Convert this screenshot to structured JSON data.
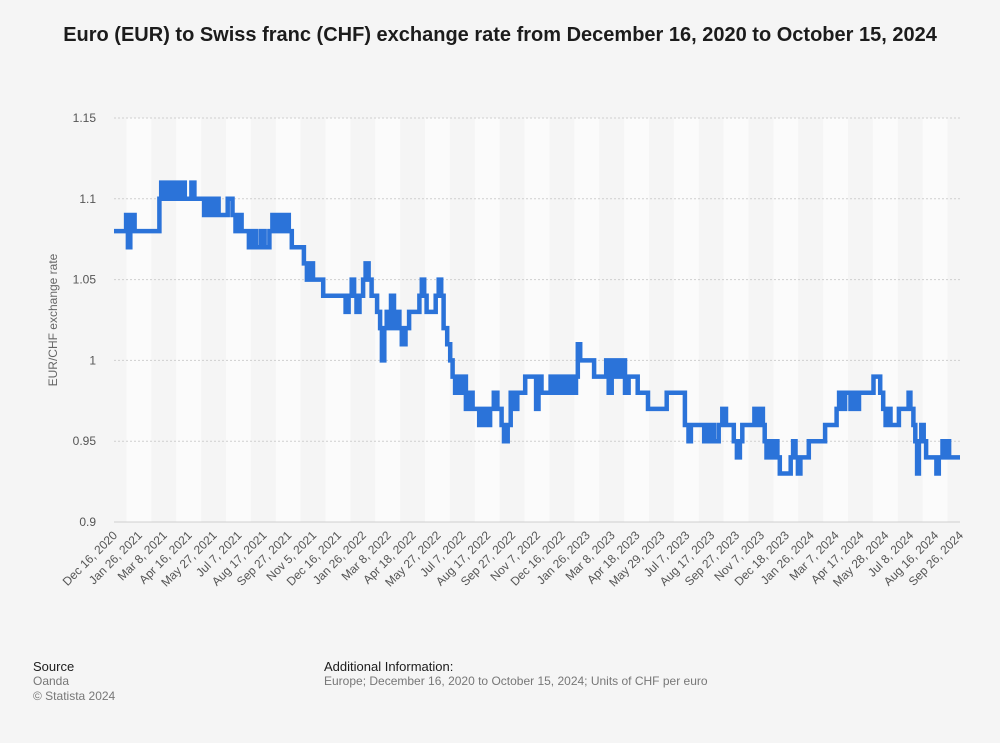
{
  "chart_data": {
    "type": "line",
    "title": "Euro (EUR) to Swiss franc (CHF) exchange rate from December 16, 2020 to October 15, 2024",
    "ylabel": "EUR/CHF exchange rate",
    "xlabel": "",
    "ylim": [
      0.9,
      1.15
    ],
    "yticks": [
      "0.9",
      "0.95",
      "1",
      "1.05",
      "1.1",
      "1.15"
    ],
    "grid": true,
    "x_tick_labels": [
      "Dec 16, 2020",
      "Jan 26, 2021",
      "Mar 8, 2021",
      "Apr 16, 2021",
      "May 27, 2021",
      "Jul 7, 2021",
      "Aug 17, 2021",
      "Sep 27, 2021",
      "Nov 5, 2021",
      "Dec 16, 2021",
      "Jan 26, 2022",
      "Mar 8, 2022",
      "Apr 18, 2022",
      "May 27, 2022",
      "Jul 7, 2022",
      "Aug 17, 2022",
      "Sep 27, 2022",
      "Nov 7, 2022",
      "Dec 16, 2022",
      "Jan 26, 2023",
      "Mar 8, 2023",
      "Apr 18, 2023",
      "May 29, 2023",
      "Jul 7, 2023",
      "Aug 17, 2023",
      "Sep 27, 2023",
      "Nov 7, 2023",
      "Dec 18, 2023",
      "Jan 26, 2024",
      "Mar 7, 2024",
      "Apr 17, 2024",
      "May 28, 2024",
      "Jul 8, 2024",
      "Aug 16, 2024",
      "Sep 26, 2024"
    ],
    "series": [
      {
        "color": "#2b73d9",
        "points": [
          [
            "2020-12-16",
            1.08
          ],
          [
            "2021-01-01",
            1.08
          ],
          [
            "2021-01-05",
            1.09
          ],
          [
            "2021-01-08",
            1.07
          ],
          [
            "2021-01-12",
            1.08
          ],
          [
            "2021-01-15",
            1.09
          ],
          [
            "2021-01-19",
            1.08
          ],
          [
            "2021-02-05",
            1.08
          ],
          [
            "2021-02-26",
            1.08
          ],
          [
            "2021-03-01",
            1.1
          ],
          [
            "2021-03-04",
            1.11
          ],
          [
            "2021-03-09",
            1.1
          ],
          [
            "2021-03-12",
            1.11
          ],
          [
            "2021-03-16",
            1.1
          ],
          [
            "2021-03-19",
            1.11
          ],
          [
            "2021-03-24",
            1.1
          ],
          [
            "2021-03-29",
            1.11
          ],
          [
            "2021-04-02",
            1.1
          ],
          [
            "2021-04-07",
            1.11
          ],
          [
            "2021-04-12",
            1.1
          ],
          [
            "2021-04-19",
            1.1
          ],
          [
            "2021-04-23",
            1.11
          ],
          [
            "2021-04-28",
            1.1
          ],
          [
            "2021-05-10",
            1.1
          ],
          [
            "2021-05-14",
            1.09
          ],
          [
            "2021-05-20",
            1.1
          ],
          [
            "2021-05-25",
            1.09
          ],
          [
            "2021-05-31",
            1.1
          ],
          [
            "2021-06-07",
            1.09
          ],
          [
            "2021-06-18",
            1.09
          ],
          [
            "2021-06-22",
            1.1
          ],
          [
            "2021-06-30",
            1.09
          ],
          [
            "2021-07-05",
            1.08
          ],
          [
            "2021-07-10",
            1.09
          ],
          [
            "2021-07-15",
            1.08
          ],
          [
            "2021-07-23",
            1.08
          ],
          [
            "2021-07-27",
            1.07
          ],
          [
            "2021-08-02",
            1.08
          ],
          [
            "2021-08-08",
            1.07
          ],
          [
            "2021-08-16",
            1.08
          ],
          [
            "2021-08-22",
            1.07
          ],
          [
            "2021-08-30",
            1.08
          ],
          [
            "2021-09-04",
            1.09
          ],
          [
            "2021-09-10",
            1.08
          ],
          [
            "2021-09-15",
            1.09
          ],
          [
            "2021-09-20",
            1.08
          ],
          [
            "2021-09-26",
            1.09
          ],
          [
            "2021-10-01",
            1.08
          ],
          [
            "2021-10-06",
            1.07
          ],
          [
            "2021-10-20",
            1.07
          ],
          [
            "2021-10-26",
            1.06
          ],
          [
            "2021-10-31",
            1.05
          ],
          [
            "2021-11-04",
            1.06
          ],
          [
            "2021-11-10",
            1.05
          ],
          [
            "2021-11-23",
            1.05
          ],
          [
            "2021-11-27",
            1.04
          ],
          [
            "2021-12-31",
            1.04
          ],
          [
            "2022-01-03",
            1.03
          ],
          [
            "2022-01-08",
            1.04
          ],
          [
            "2022-01-13",
            1.05
          ],
          [
            "2022-01-17",
            1.04
          ],
          [
            "2022-01-21",
            1.03
          ],
          [
            "2022-01-26",
            1.04
          ],
          [
            "2022-02-01",
            1.05
          ],
          [
            "2022-02-05",
            1.06
          ],
          [
            "2022-02-10",
            1.05
          ],
          [
            "2022-02-15",
            1.04
          ],
          [
            "2022-02-24",
            1.03
          ],
          [
            "2022-03-01",
            1.02
          ],
          [
            "2022-03-04",
            1.0
          ],
          [
            "2022-03-08",
            1.02
          ],
          [
            "2022-03-12",
            1.03
          ],
          [
            "2022-03-15",
            1.02
          ],
          [
            "2022-03-19",
            1.04
          ],
          [
            "2022-03-24",
            1.02
          ],
          [
            "2022-03-28",
            1.03
          ],
          [
            "2022-04-02",
            1.02
          ],
          [
            "2022-04-06",
            1.01
          ],
          [
            "2022-04-12",
            1.02
          ],
          [
            "2022-04-18",
            1.03
          ],
          [
            "2022-04-30",
            1.03
          ],
          [
            "2022-05-05",
            1.04
          ],
          [
            "2022-05-09",
            1.05
          ],
          [
            "2022-05-13",
            1.04
          ],
          [
            "2022-05-17",
            1.03
          ],
          [
            "2022-05-27",
            1.03
          ],
          [
            "2022-06-01",
            1.04
          ],
          [
            "2022-06-06",
            1.05
          ],
          [
            "2022-06-10",
            1.04
          ],
          [
            "2022-06-14",
            1.02
          ],
          [
            "2022-06-20",
            1.01
          ],
          [
            "2022-06-25",
            1.0
          ],
          [
            "2022-06-29",
            0.99
          ],
          [
            "2022-07-03",
            0.98
          ],
          [
            "2022-07-08",
            0.99
          ],
          [
            "2022-07-12",
            0.98
          ],
          [
            "2022-07-16",
            0.99
          ],
          [
            "2022-07-21",
            0.97
          ],
          [
            "2022-07-26",
            0.98
          ],
          [
            "2022-08-01",
            0.97
          ],
          [
            "2022-08-08",
            0.97
          ],
          [
            "2022-08-12",
            0.96
          ],
          [
            "2022-08-17",
            0.97
          ],
          [
            "2022-08-23",
            0.96
          ],
          [
            "2022-08-30",
            0.97
          ],
          [
            "2022-09-05",
            0.98
          ],
          [
            "2022-09-11",
            0.97
          ],
          [
            "2022-09-18",
            0.96
          ],
          [
            "2022-09-22",
            0.95
          ],
          [
            "2022-09-28",
            0.96
          ],
          [
            "2022-10-03",
            0.98
          ],
          [
            "2022-10-07",
            0.97
          ],
          [
            "2022-10-14",
            0.98
          ],
          [
            "2022-10-22",
            0.98
          ],
          [
            "2022-10-27",
            0.99
          ],
          [
            "2022-11-10",
            0.99
          ],
          [
            "2022-11-14",
            0.97
          ],
          [
            "2022-11-18",
            0.99
          ],
          [
            "2022-11-23",
            0.98
          ],
          [
            "2022-12-03",
            0.98
          ],
          [
            "2022-12-08",
            0.99
          ],
          [
            "2022-12-12",
            0.98
          ],
          [
            "2022-12-16",
            0.99
          ],
          [
            "2022-12-20",
            0.98
          ],
          [
            "2022-12-25",
            0.99
          ],
          [
            "2022-12-29",
            0.98
          ],
          [
            "2023-01-03",
            0.99
          ],
          [
            "2023-01-07",
            0.98
          ],
          [
            "2023-01-11",
            0.99
          ],
          [
            "2023-01-15",
            0.98
          ],
          [
            "2023-01-19",
            0.99
          ],
          [
            "2023-01-22",
            1.01
          ],
          [
            "2023-01-26",
            1.0
          ],
          [
            "2023-02-14",
            1.0
          ],
          [
            "2023-02-18",
            0.99
          ],
          [
            "2023-03-06",
            0.99
          ],
          [
            "2023-03-10",
            1.0
          ],
          [
            "2023-03-14",
            0.98
          ],
          [
            "2023-03-19",
            1.0
          ],
          [
            "2023-03-23",
            0.99
          ],
          [
            "2023-03-27",
            1.0
          ],
          [
            "2023-03-31",
            0.99
          ],
          [
            "2023-04-04",
            1.0
          ],
          [
            "2023-04-10",
            0.98
          ],
          [
            "2023-04-16",
            0.99
          ],
          [
            "2023-05-01",
            0.98
          ],
          [
            "2023-05-14",
            0.98
          ],
          [
            "2023-05-18",
            0.97
          ],
          [
            "2023-06-14",
            0.97
          ],
          [
            "2023-06-18",
            0.98
          ],
          [
            "2023-07-14",
            0.98
          ],
          [
            "2023-07-18",
            0.96
          ],
          [
            "2023-07-24",
            0.95
          ],
          [
            "2023-07-28",
            0.96
          ],
          [
            "2023-08-15",
            0.96
          ],
          [
            "2023-08-19",
            0.95
          ],
          [
            "2023-08-23",
            0.96
          ],
          [
            "2023-08-27",
            0.95
          ],
          [
            "2023-08-31",
            0.96
          ],
          [
            "2023-09-04",
            0.95
          ],
          [
            "2023-09-12",
            0.96
          ],
          [
            "2023-09-18",
            0.97
          ],
          [
            "2023-09-24",
            0.96
          ],
          [
            "2023-10-03",
            0.96
          ],
          [
            "2023-10-07",
            0.95
          ],
          [
            "2023-10-12",
            0.94
          ],
          [
            "2023-10-17",
            0.95
          ],
          [
            "2023-10-21",
            0.96
          ],
          [
            "2023-11-05",
            0.96
          ],
          [
            "2023-11-10",
            0.97
          ],
          [
            "2023-11-14",
            0.96
          ],
          [
            "2023-11-18",
            0.97
          ],
          [
            "2023-11-24",
            0.96
          ],
          [
            "2023-11-27",
            0.95
          ],
          [
            "2023-11-30",
            0.94
          ],
          [
            "2023-12-04",
            0.95
          ],
          [
            "2023-12-08",
            0.94
          ],
          [
            "2023-12-12",
            0.95
          ],
          [
            "2023-12-18",
            0.94
          ],
          [
            "2023-12-22",
            0.93
          ],
          [
            "2024-01-06",
            0.93
          ],
          [
            "2024-01-09",
            0.94
          ],
          [
            "2024-01-13",
            0.95
          ],
          [
            "2024-01-17",
            0.94
          ],
          [
            "2024-01-21",
            0.93
          ],
          [
            "2024-01-25",
            0.94
          ],
          [
            "2024-02-03",
            0.94
          ],
          [
            "2024-02-08",
            0.95
          ],
          [
            "2024-03-01",
            0.95
          ],
          [
            "2024-03-06",
            0.96
          ],
          [
            "2024-03-20",
            0.96
          ],
          [
            "2024-03-25",
            0.97
          ],
          [
            "2024-03-29",
            0.98
          ],
          [
            "2024-04-02",
            0.97
          ],
          [
            "2024-04-08",
            0.98
          ],
          [
            "2024-04-17",
            0.97
          ],
          [
            "2024-04-21",
            0.98
          ],
          [
            "2024-04-27",
            0.97
          ],
          [
            "2024-05-01",
            0.98
          ],
          [
            "2024-05-20",
            0.98
          ],
          [
            "2024-05-25",
            0.99
          ],
          [
            "2024-06-05",
            0.98
          ],
          [
            "2024-06-10",
            0.97
          ],
          [
            "2024-06-14",
            0.96
          ],
          [
            "2024-06-18",
            0.97
          ],
          [
            "2024-06-22",
            0.96
          ],
          [
            "2024-07-03",
            0.96
          ],
          [
            "2024-07-06",
            0.97
          ],
          [
            "2024-07-19",
            0.97
          ],
          [
            "2024-07-22",
            0.98
          ],
          [
            "2024-07-25",
            0.97
          ],
          [
            "2024-07-30",
            0.96
          ],
          [
            "2024-08-02",
            0.95
          ],
          [
            "2024-08-05",
            0.93
          ],
          [
            "2024-08-08",
            0.95
          ],
          [
            "2024-08-12",
            0.96
          ],
          [
            "2024-08-16",
            0.95
          ],
          [
            "2024-08-20",
            0.94
          ],
          [
            "2024-09-02",
            0.94
          ],
          [
            "2024-09-06",
            0.93
          ],
          [
            "2024-09-10",
            0.94
          ],
          [
            "2024-09-16",
            0.95
          ],
          [
            "2024-09-19",
            0.94
          ],
          [
            "2024-09-23",
            0.95
          ],
          [
            "2024-09-27",
            0.94
          ],
          [
            "2024-10-15",
            0.94
          ]
        ]
      }
    ]
  },
  "footer": {
    "source_heading": "Source",
    "source_name": "Oanda",
    "copyright": "© Statista 2024",
    "info_heading": "Additional Information:",
    "info_text": "Europe; December 16, 2020 to October 15, 2024; Units of CHF per euro"
  }
}
